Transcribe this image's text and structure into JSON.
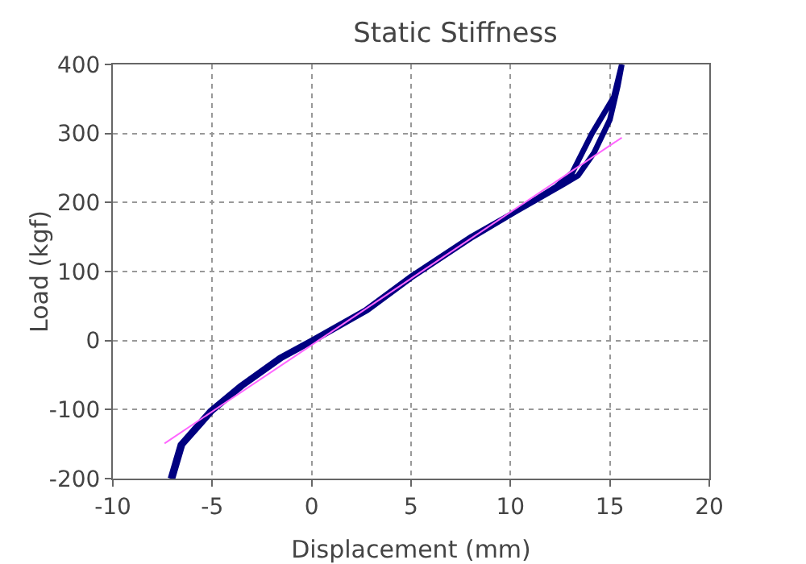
{
  "chart_data": {
    "type": "line",
    "title": "Static Stiffness",
    "xlabel": "Displacement (mm)",
    "ylabel": "Load (kgf)",
    "xlim": [
      -10,
      20
    ],
    "xticks": [
      -10,
      -5,
      0,
      5,
      10,
      15,
      20
    ],
    "ylim": [
      -200,
      400
    ],
    "yticks": [
      -200,
      -100,
      0,
      100,
      200,
      300,
      400
    ],
    "grid": true,
    "marker": "none",
    "line_style": "solid",
    "series": [
      {
        "color": "#000080",
        "x": [
          -7.1,
          -6.6,
          -5.1,
          -3.6,
          -1.6,
          0,
          2.7,
          5,
          8,
          10.7,
          12.7,
          13.4,
          14.2,
          15,
          15.4,
          15.6,
          15.2,
          14.1,
          13.1,
          12.3,
          10.8,
          8.1,
          5.1,
          2.8,
          0.1,
          -1.5,
          -3.5,
          -5.0,
          -6.5,
          -7.0
        ],
        "values": [
          -200,
          -151,
          -102,
          -66,
          -25,
          0,
          44,
          93,
          150,
          194,
          227,
          239,
          272,
          320,
          369,
          400,
          353,
          300,
          243,
          223,
          196,
          150,
          93,
          44,
          0,
          -25,
          -66,
          -102,
          -151,
          -200
        ]
      },
      {
        "color": "#ff66ff",
        "x": [
          -7.4,
          15.6
        ],
        "values": [
          -149,
          294
        ]
      }
    ]
  }
}
